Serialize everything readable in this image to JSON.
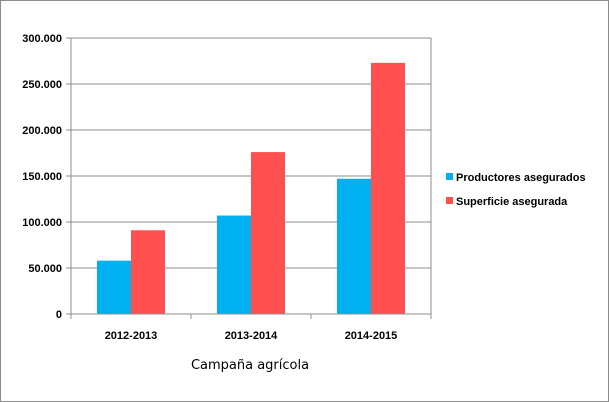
{
  "chart_data": {
    "type": "bar",
    "categories": [
      "2012-2013",
      "2013-2014",
      "2014-2015"
    ],
    "series": [
      {
        "name": "Productores asegurados",
        "color": "#00b0f0",
        "values": [
          58000,
          107000,
          147000
        ]
      },
      {
        "name": "Superficie asegurada",
        "color": "#ff5050",
        "values": [
          91000,
          176000,
          273000
        ]
      }
    ],
    "xlabel": "Campaña agrícola",
    "ylabel": "",
    "ylim": [
      0,
      300000
    ],
    "yticks": [
      {
        "value": 0,
        "label": "0"
      },
      {
        "value": 50000,
        "label": "50.000"
      },
      {
        "value": 100000,
        "label": "100.000"
      },
      {
        "value": 150000,
        "label": "150.000"
      },
      {
        "value": 200000,
        "label": "200.000"
      },
      {
        "value": 250000,
        "label": "250.000"
      },
      {
        "value": 300000,
        "label": "300.000"
      }
    ],
    "grid": true,
    "legend_position": "right"
  }
}
